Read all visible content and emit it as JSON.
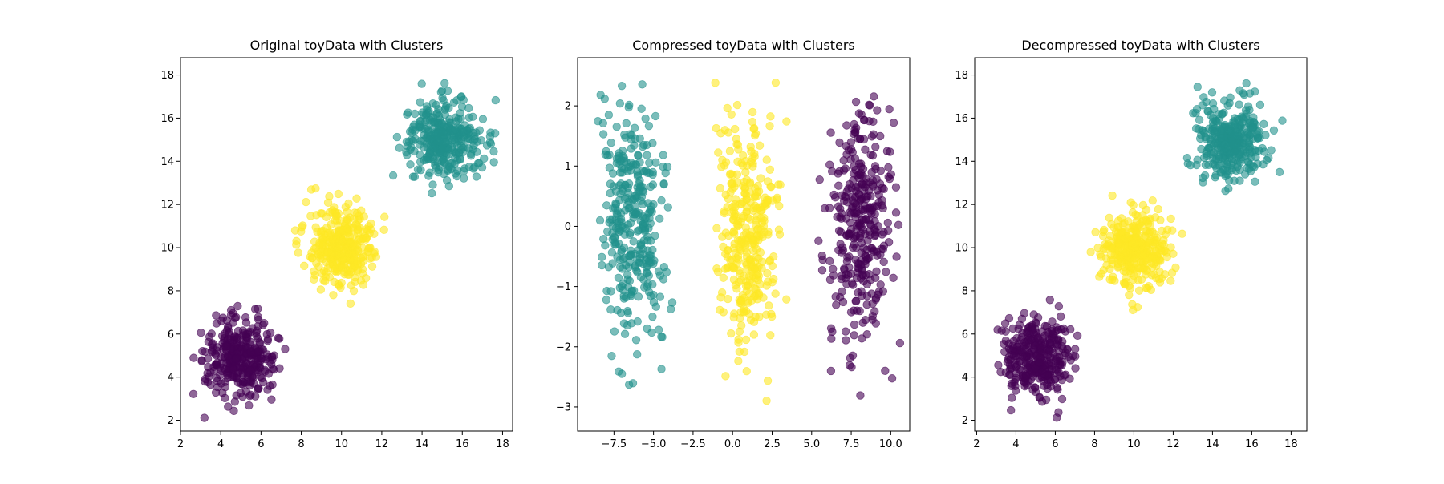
{
  "chart_data": [
    {
      "type": "scatter",
      "title": "Original toyData with Clusters",
      "xlabel": "",
      "ylabel": "",
      "xlim": [
        2,
        18.5
      ],
      "ylim": [
        1.5,
        18.8
      ],
      "xticks": [
        2,
        4,
        6,
        8,
        10,
        12,
        14,
        16,
        18
      ],
      "yticks": [
        2,
        4,
        6,
        8,
        10,
        12,
        14,
        16,
        18
      ],
      "xtick_labels": [
        "2",
        "4",
        "6",
        "8",
        "10",
        "12",
        "14",
        "16",
        "18"
      ],
      "ytick_labels": [
        "2",
        "4",
        "6",
        "8",
        "10",
        "12",
        "14",
        "16",
        "18"
      ],
      "grid": false,
      "marker_alpha": 0.6,
      "clusters": [
        {
          "color": "#440154",
          "center": [
            5,
            5
          ],
          "spread": [
            0.9,
            0.9
          ],
          "count": 333,
          "x_range": [
            2.6,
            7.4
          ],
          "y_range": [
            2.1,
            7.9
          ]
        },
        {
          "color": "#fde725",
          "center": [
            10,
            10
          ],
          "spread": [
            0.9,
            0.9
          ],
          "count": 333,
          "x_range": [
            7.6,
            12.4
          ],
          "y_range": [
            6.7,
            12.8
          ]
        },
        {
          "color": "#21918c",
          "center": [
            15,
            15
          ],
          "spread": [
            0.9,
            0.9
          ],
          "count": 334,
          "x_range": [
            12.4,
            17.9
          ],
          "y_range": [
            12.4,
            18.0
          ]
        }
      ]
    },
    {
      "type": "scatter",
      "title": "Compressed toyData with Clusters",
      "xlabel": "",
      "ylabel": "",
      "xlim": [
        -9.8,
        11.2
      ],
      "ylim": [
        -3.4,
        2.8
      ],
      "xticks": [
        -7.5,
        -5.0,
        -2.5,
        0.0,
        2.5,
        5.0,
        7.5,
        10.0
      ],
      "yticks": [
        -3,
        -2,
        -1,
        0,
        1,
        2
      ],
      "xtick_labels": [
        "−7.5",
        "−5.0",
        "−2.5",
        "0.0",
        "2.5",
        "5.0",
        "7.5",
        "10.0"
      ],
      "ytick_labels": [
        "−3",
        "−2",
        "−1",
        "0",
        "1",
        "2"
      ],
      "grid": false,
      "marker_alpha": 0.6,
      "clusters": [
        {
          "color": "#21918c",
          "center": [
            -6.2,
            0
          ],
          "spread": [
            1.0,
            1.0
          ],
          "count": 334,
          "x_range": [
            -8.6,
            -3.8
          ],
          "y_range": [
            -3.1,
            2.5
          ]
        },
        {
          "color": "#fde725",
          "center": [
            1.0,
            0
          ],
          "spread": [
            1.0,
            1.0
          ],
          "count": 333,
          "x_range": [
            -1.2,
            3.6
          ],
          "y_range": [
            -2.9,
            2.4
          ]
        },
        {
          "color": "#440154",
          "center": [
            8.0,
            0
          ],
          "spread": [
            1.0,
            1.0
          ],
          "count": 333,
          "x_range": [
            5.0,
            10.7
          ],
          "y_range": [
            -3.0,
            2.2
          ]
        }
      ]
    },
    {
      "type": "scatter",
      "title": "Decompressed toyData with Clusters",
      "xlabel": "",
      "ylabel": "",
      "xlim": [
        1.9,
        18.8
      ],
      "ylim": [
        1.5,
        18.8
      ],
      "xticks": [
        2,
        4,
        6,
        8,
        10,
        12,
        14,
        16,
        18
      ],
      "yticks": [
        2,
        4,
        6,
        8,
        10,
        12,
        14,
        16,
        18
      ],
      "xtick_labels": [
        "2",
        "4",
        "6",
        "8",
        "10",
        "12",
        "14",
        "16",
        "18"
      ],
      "ytick_labels": [
        "2",
        "4",
        "6",
        "8",
        "10",
        "12",
        "14",
        "16",
        "18"
      ],
      "grid": false,
      "marker_alpha": 0.6,
      "clusters": [
        {
          "color": "#440154",
          "center": [
            5,
            5
          ],
          "spread": [
            0.9,
            0.9
          ],
          "count": 333,
          "x_range": [
            2.6,
            7.2
          ],
          "y_range": [
            2.1,
            8.0
          ]
        },
        {
          "color": "#fde725",
          "center": [
            10,
            10
          ],
          "spread": [
            0.9,
            0.9
          ],
          "count": 333,
          "x_range": [
            7.8,
            12.6
          ],
          "y_range": [
            6.7,
            12.8
          ]
        },
        {
          "color": "#21918c",
          "center": [
            15,
            15
          ],
          "spread": [
            0.9,
            0.9
          ],
          "count": 334,
          "x_range": [
            12.4,
            18.0
          ],
          "y_range": [
            12.4,
            18.0
          ]
        }
      ]
    }
  ]
}
